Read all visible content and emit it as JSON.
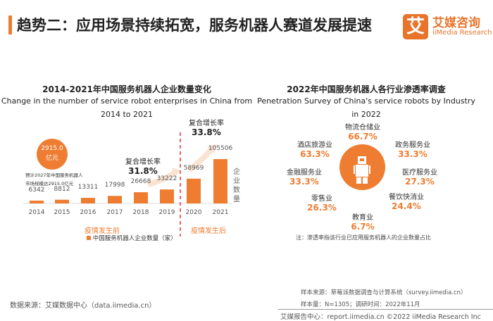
{
  "header": {
    "title": "趋势二：应用场景持续拓宽，服务机器人赛道发展提速",
    "logo_mark": "艾",
    "logo_cn": "艾媒咨询",
    "logo_en": "iiMedia Research",
    "accent": "#ee7d31"
  },
  "chart_data": {
    "type": "bar",
    "title": "2014-2021年中国服务机器人企业数量变化",
    "subtitle_line1": "Change in the number of service robot enterprises in China from",
    "subtitle_line2": "2014 to 2021",
    "categories": [
      "2014",
      "2015",
      "2016",
      "2017",
      "2018",
      "2019",
      "2020",
      "2021"
    ],
    "series": [
      {
        "name": "中国服务机器人企业数量（家）",
        "values": [
          6342,
          8812,
          13311,
          17998,
          26668,
          33222,
          58969,
          105506
        ]
      }
    ],
    "ylabel": "企业数量",
    "legend": "bottom",
    "color": "#ee7d31",
    "annotations": {
      "bubble_value": "2915.0",
      "bubble_unit": "亿元",
      "forecast_line1": "预计2027年中国服务机器人",
      "forecast_line2": "市场规模达2915.0亿元",
      "cagr_before_label": "复合增长率",
      "cagr_before": "31.8%",
      "cagr_after_label": "复合增长率",
      "cagr_after": "33.8%",
      "before": "疫情发生前",
      "after": "疫情发生后"
    }
  },
  "penetration": {
    "title": "2022年中国服务机器人各行业渗透率调查",
    "subtitle_line1": "Penetration Survey of China's service robots by Industry",
    "subtitle_line2": "in 2022",
    "industries": [
      {
        "name": "物流仓储业",
        "value": "66.7%"
      },
      {
        "name": "政务服务业",
        "value": "33.3%"
      },
      {
        "name": "医疗服务业",
        "value": "27.3%"
      },
      {
        "name": "餐饮快消业",
        "value": "24.4%"
      },
      {
        "name": "教育业",
        "value": "6.7%"
      },
      {
        "name": "零售业",
        "value": "26.3%"
      },
      {
        "name": "金融服务业",
        "value": "33.3%"
      },
      {
        "name": "酒店旅游业",
        "value": "63.3%"
      }
    ],
    "note": "注：渗透率指该行业已应用服务机器人的企业数量占比"
  },
  "footer": {
    "data_source": "数据来源：艾媒数据中心（data.iimedia.cn）",
    "sample_source": "样本来源：草莓派数据调查与计算系统（survey.iimedia.cn）",
    "sample_size": "样本量：N=1305；调研时间：2022年11月",
    "report": "艾媒报告中心：report.iimedia.cn   ©2022  iiMedia Research  Inc"
  }
}
